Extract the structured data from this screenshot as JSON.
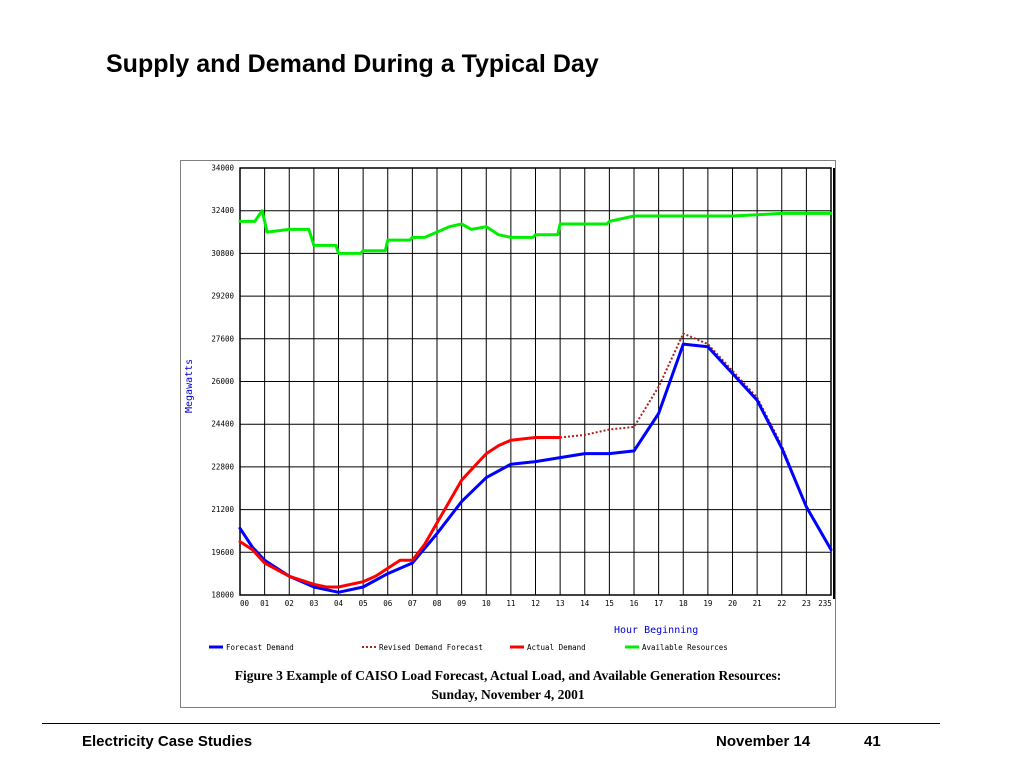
{
  "slide": {
    "title": "Supply and Demand During a Typical Day",
    "footer_left": "Electricity Case Studies",
    "footer_date": "November 14",
    "page_number": "41"
  },
  "figure": {
    "caption_line1": "Figure 3 Example of CAISO Load Forecast, Actual Load, and Available Generation Resources:",
    "caption_line2": "Sunday, November 4, 2001"
  },
  "colors": {
    "forecast": "#0000ff",
    "revised": "#aa2222",
    "actual": "#ff0000",
    "available": "#00ee00"
  },
  "chart_data": {
    "type": "line",
    "title": "",
    "xlabel": "Hour Beginning",
    "ylabel": "Megawatts",
    "ylim": [
      18000,
      34000
    ],
    "xlim": [
      0,
      24
    ],
    "grid": true,
    "legend_placement": "bottom",
    "y_ticks": [
      "18000",
      "19600",
      "21200",
      "22800",
      "24400",
      "26000",
      "27600",
      "29200",
      "30800",
      "32400",
      "34000"
    ],
    "x_ticks": [
      "00",
      "01",
      "02",
      "03",
      "04",
      "05",
      "06",
      "07",
      "08",
      "09",
      "10",
      "11",
      "12",
      "13",
      "14",
      "15",
      "16",
      "17",
      "18",
      "19",
      "20",
      "21",
      "22",
      "23",
      "235"
    ],
    "series": [
      {
        "name": "Forecast Demand",
        "style": "solid",
        "x": [
          0,
          0.5,
          1,
          2,
          3,
          4,
          5,
          6,
          7,
          8,
          9,
          10,
          11,
          12,
          13,
          14,
          15,
          16,
          17,
          18,
          19,
          20,
          21,
          22,
          23,
          24
        ],
        "y": [
          20500,
          19800,
          19300,
          18700,
          18300,
          18100,
          18300,
          18800,
          19200,
          20300,
          21500,
          22400,
          22900,
          23000,
          23150,
          23300,
          23300,
          23400,
          24800,
          27400,
          27300,
          26300,
          25300,
          23500,
          21300,
          19700
        ]
      },
      {
        "name": "Revised Demand Forecast",
        "style": "dotted",
        "x": [
          13,
          14,
          15,
          16,
          17,
          18,
          19,
          20,
          21,
          22,
          23,
          24
        ],
        "y": [
          23900,
          24000,
          24200,
          24300,
          25800,
          27800,
          27400,
          26400,
          25400,
          23600,
          21300,
          19700
        ]
      },
      {
        "name": "Actual Demand",
        "style": "solid",
        "x": [
          0,
          0.5,
          1,
          2,
          3,
          3.5,
          4,
          5,
          5.5,
          6,
          6.5,
          7,
          7.5,
          8,
          8.5,
          9,
          9.5,
          10,
          10.5,
          11,
          11.5,
          12,
          12.5,
          13
        ],
        "y": [
          20000,
          19700,
          19200,
          18700,
          18400,
          18300,
          18300,
          18500,
          18700,
          19000,
          19300,
          19300,
          19900,
          20700,
          21500,
          22300,
          22800,
          23300,
          23600,
          23800,
          23850,
          23900,
          23900,
          23900
        ]
      },
      {
        "name": "Available Resources",
        "style": "solid",
        "x": [
          0,
          0.6,
          0.9,
          1.1,
          2,
          2.8,
          3,
          3.9,
          4,
          4.9,
          5,
          5.9,
          6,
          6.9,
          7,
          7.5,
          8,
          8.5,
          9,
          9.4,
          10,
          10.5,
          11,
          11.9,
          12,
          12.9,
          13,
          14,
          14.9,
          15,
          15.5,
          16,
          17,
          18,
          19,
          20,
          21,
          22,
          23,
          24
        ],
        "y": [
          32000,
          32000,
          32400,
          31600,
          31700,
          31700,
          31100,
          31100,
          30800,
          30800,
          30900,
          30900,
          31300,
          31300,
          31400,
          31400,
          31600,
          31800,
          31900,
          31700,
          31800,
          31500,
          31400,
          31400,
          31500,
          31500,
          31900,
          31900,
          31900,
          32000,
          32100,
          32200,
          32200,
          32200,
          32200,
          32200,
          32250,
          32300,
          32300,
          32300
        ]
      }
    ]
  }
}
